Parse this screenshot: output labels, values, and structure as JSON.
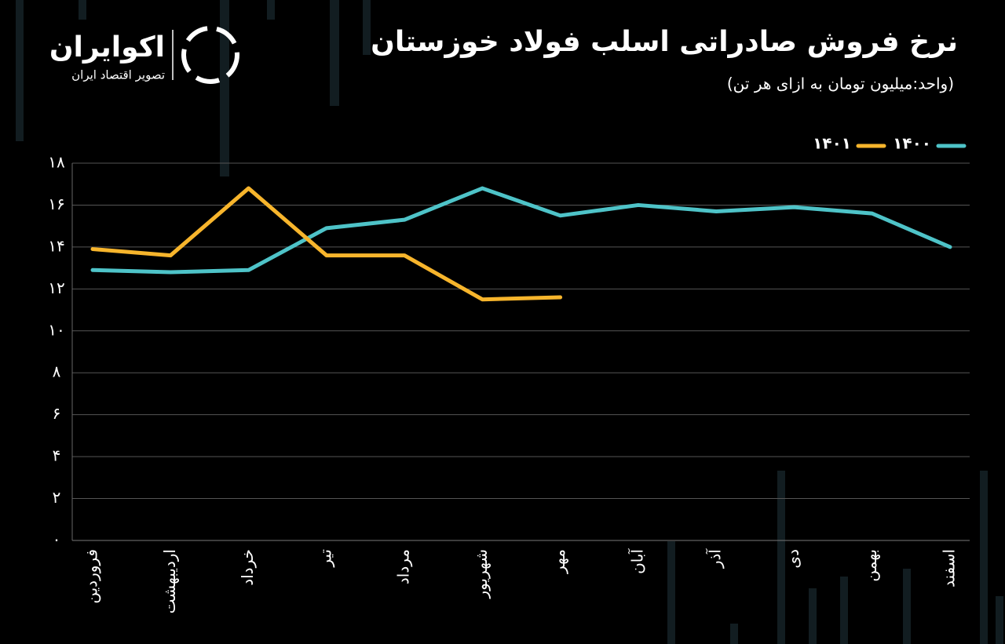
{
  "chart_data": {
    "type": "line",
    "title": "نرخ فروش صادراتی اسلب فولاد خوزستان",
    "subtitle": "(واحد:میلیون تومان به ازای هر تن)",
    "brand": {
      "name": "اکوایران",
      "tagline": "تصویر اقتصاد ایران"
    },
    "categories": [
      "فروردین",
      "اردیبهشت",
      "خرداد",
      "تیر",
      "مرداد",
      "شهریور",
      "مهر",
      "آبان",
      "آذر",
      "دی",
      "بهمن",
      "اسفند"
    ],
    "series": [
      {
        "name": "۱۴۰۰",
        "color": "#4ec3c8",
        "values": [
          12.9,
          12.8,
          12.9,
          14.9,
          15.3,
          16.8,
          15.5,
          16.0,
          15.7,
          15.9,
          15.6,
          14.0
        ]
      },
      {
        "name": "۱۴۰۱",
        "color": "#f7b52c",
        "values": [
          13.9,
          13.6,
          16.8,
          13.6,
          13.6,
          11.5,
          11.6,
          null,
          null,
          null,
          null,
          null
        ]
      }
    ],
    "ylim": [
      0,
      18
    ],
    "yticks": [
      {
        "value": 0,
        "label": "۰"
      },
      {
        "value": 2,
        "label": "۲"
      },
      {
        "value": 4,
        "label": "۴"
      },
      {
        "value": 6,
        "label": "۶"
      },
      {
        "value": 8,
        "label": "۸"
      },
      {
        "value": 10,
        "label": "۱۰"
      },
      {
        "value": 12,
        "label": "۱۲"
      },
      {
        "value": 14,
        "label": "۱۴"
      },
      {
        "value": 16,
        "label": "۱۶"
      },
      {
        "value": 18,
        "label": "۱۸"
      }
    ],
    "grid": true,
    "legend": "top-right"
  }
}
